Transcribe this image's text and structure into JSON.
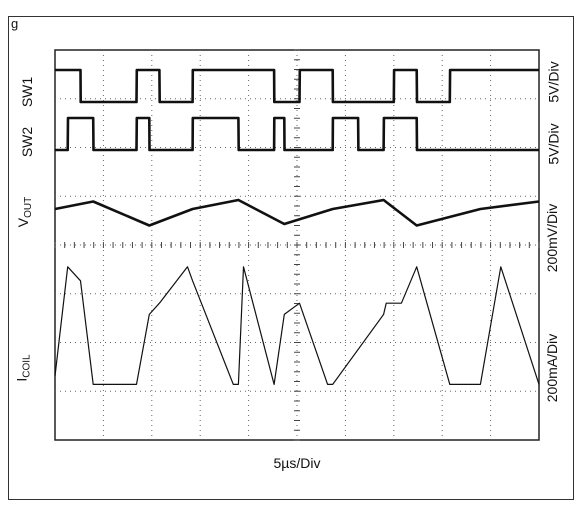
{
  "figure_label": "g",
  "chart_data": {
    "type": "line",
    "title": "",
    "xlabel": "5µs/Div",
    "grid": "dotted 10x8 with center crosshair",
    "channels": [
      {
        "name_main": "SW1",
        "name_sub": "",
        "scale": "5V/Div"
      },
      {
        "name_main": "SW2",
        "name_sub": "",
        "scale": "5V/Div"
      },
      {
        "name_main": "V",
        "name_sub": "OUT",
        "scale": "200mV/Div"
      },
      {
        "name_main": "I",
        "name_sub": "COIL",
        "scale": "200mA/Div"
      }
    ],
    "series": [
      {
        "channel": 0,
        "x": [
          0,
          1,
          1.01,
          3.2,
          3.21,
          4.1,
          4.11,
          5.4,
          5.41,
          8.6,
          8.61,
          9.6,
          9.61,
          10.9,
          10.91,
          13.3,
          13.31,
          14.2,
          14.21,
          15.5,
          15.51,
          19.0
        ],
        "y": [
          0.8,
          0.8,
          0,
          0,
          0.8,
          0.8,
          0,
          0,
          0.8,
          0.8,
          0,
          0,
          0.8,
          0.8,
          0,
          0,
          0.8,
          0.8,
          0,
          0,
          0.8,
          0.8
        ]
      },
      {
        "channel": 1,
        "x": [
          0,
          0.5,
          0.51,
          1.5,
          1.51,
          3.2,
          3.21,
          3.7,
          3.71,
          5.4,
          5.41,
          7.2,
          7.21,
          8.6,
          8.61,
          9.0,
          9.01,
          10.9,
          10.91,
          11.9,
          11.91,
          12.9,
          12.91,
          14.2,
          14.21,
          19.0
        ],
        "y": [
          0,
          0,
          0.8,
          0.8,
          0,
          0,
          0.8,
          0.8,
          0,
          0,
          0.8,
          0.8,
          0,
          0,
          0.8,
          0.8,
          0,
          0,
          0.8,
          0.8,
          0,
          0,
          0.8,
          0.8,
          0,
          0
        ]
      },
      {
        "channel": 2,
        "x": [
          0,
          1.5,
          3.7,
          5.4,
          7.2,
          9.0,
          10.9,
          12.9,
          14.2,
          16.7,
          19.0
        ],
        "y": [
          0.1,
          0.35,
          -0.45,
          0.1,
          0.4,
          -0.4,
          0.1,
          0.4,
          -0.45,
          0.1,
          0.35
        ]
      },
      {
        "channel": 3,
        "x": [
          0,
          0.5,
          1.0,
          1.5,
          3.2,
          3.7,
          4.1,
          5.2,
          5.4,
          7.0,
          7.2,
          7.4,
          8.6,
          9.0,
          9.6,
          10.7,
          10.9,
          12.9,
          13.0,
          13.6,
          14.2,
          15.5,
          16.7,
          17.5,
          19.0
        ],
        "y": [
          -1.0,
          0.95,
          0.7,
          -1.15,
          -1.15,
          0.1,
          0.3,
          0.95,
          0.7,
          -1.15,
          -1.15,
          0.95,
          -1.15,
          0.1,
          0.3,
          -1.15,
          -1.15,
          0.1,
          0.3,
          0.3,
          0.95,
          -1.15,
          -1.15,
          0.95,
          -1.15
        ]
      }
    ]
  }
}
